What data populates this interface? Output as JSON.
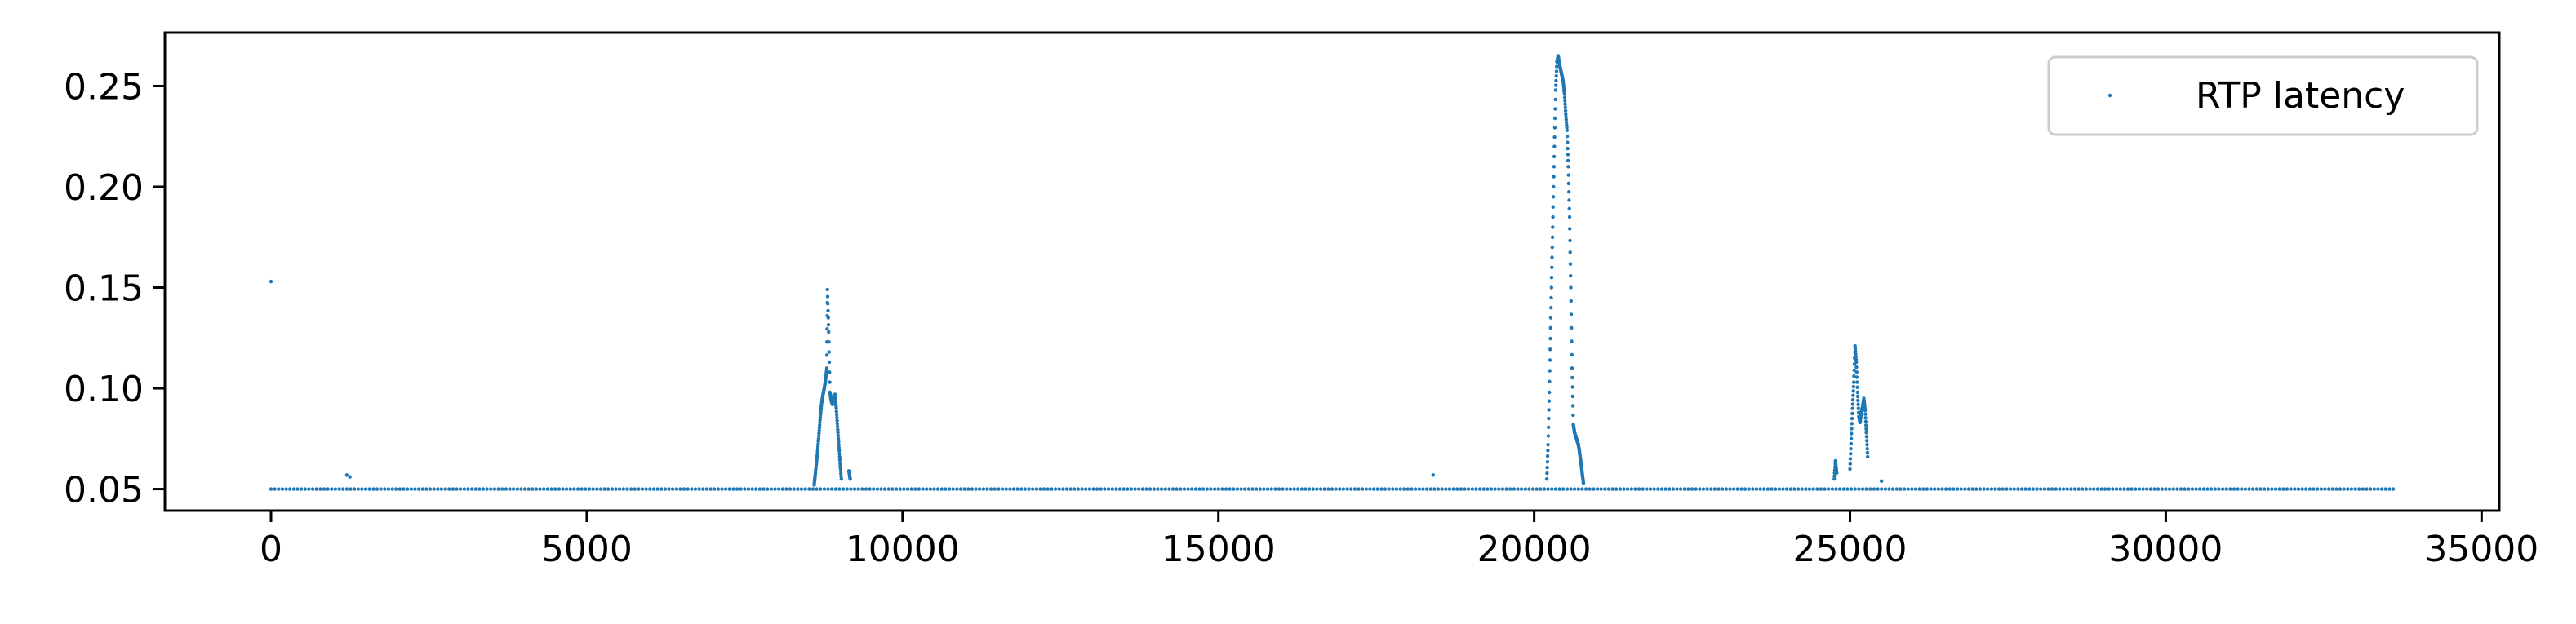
{
  "chart_data": {
    "type": "scatter",
    "title": "",
    "xlabel": "",
    "ylabel": "",
    "xlim": [
      -1680,
      35280
    ],
    "ylim": [
      0.0393,
      0.2765
    ],
    "xticks": [
      0,
      5000,
      10000,
      15000,
      20000,
      25000,
      30000,
      35000
    ],
    "xtick_labels": [
      "0",
      "5000",
      "10000",
      "15000",
      "20000",
      "25000",
      "30000",
      "35000"
    ],
    "yticks": [
      0.05,
      0.1,
      0.15,
      0.2,
      0.25
    ],
    "ytick_labels": [
      "0.05",
      "0.10",
      "0.15",
      "0.20",
      "0.25"
    ],
    "grid": false,
    "legend_position": "top-right",
    "series": [
      {
        "name": "RTP latency",
        "color": "#1f77b4",
        "baseline": {
          "x_start": 0,
          "x_end": 33600,
          "y": 0.05
        },
        "points": [
          [
            0,
            0.153
          ],
          [
            1200,
            0.057
          ],
          [
            1250,
            0.056
          ],
          [
            8600,
            0.052
          ],
          [
            8620,
            0.058
          ],
          [
            8640,
            0.064
          ],
          [
            8660,
            0.071
          ],
          [
            8680,
            0.079
          ],
          [
            8700,
            0.087
          ],
          [
            8720,
            0.093
          ],
          [
            8740,
            0.097
          ],
          [
            8760,
            0.1
          ],
          [
            8780,
            0.104
          ],
          [
            8800,
            0.11
          ],
          [
            8810,
            0.149
          ],
          [
            8830,
            0.128
          ],
          [
            8850,
            0.098
          ],
          [
            8870,
            0.094
          ],
          [
            8890,
            0.092
          ],
          [
            8910,
            0.096
          ],
          [
            8930,
            0.097
          ],
          [
            8950,
            0.09
          ],
          [
            8970,
            0.081
          ],
          [
            8990,
            0.072
          ],
          [
            9010,
            0.063
          ],
          [
            9030,
            0.055
          ],
          [
            9150,
            0.059
          ],
          [
            9170,
            0.055
          ],
          [
            18400,
            0.057
          ],
          [
            20200,
            0.055
          ],
          [
            20220,
            0.072
          ],
          [
            20240,
            0.098
          ],
          [
            20260,
            0.13
          ],
          [
            20280,
            0.16
          ],
          [
            20300,
            0.19
          ],
          [
            20320,
            0.22
          ],
          [
            20340,
            0.248
          ],
          [
            20360,
            0.262
          ],
          [
            20380,
            0.265
          ],
          [
            20400,
            0.261
          ],
          [
            20420,
            0.258
          ],
          [
            20440,
            0.255
          ],
          [
            20460,
            0.252
          ],
          [
            20480,
            0.246
          ],
          [
            20500,
            0.236
          ],
          [
            20520,
            0.228
          ],
          [
            20540,
            0.21
          ],
          [
            20560,
            0.185
          ],
          [
            20580,
            0.15
          ],
          [
            20600,
            0.11
          ],
          [
            20620,
            0.082
          ],
          [
            20640,
            0.078
          ],
          [
            20660,
            0.076
          ],
          [
            20680,
            0.074
          ],
          [
            20700,
            0.072
          ],
          [
            20720,
            0.068
          ],
          [
            20740,
            0.063
          ],
          [
            20760,
            0.058
          ],
          [
            20780,
            0.053
          ],
          [
            24750,
            0.055
          ],
          [
            24770,
            0.064
          ],
          [
            24790,
            0.058
          ],
          [
            25000,
            0.06
          ],
          [
            25020,
            0.075
          ],
          [
            25040,
            0.09
          ],
          [
            25060,
            0.103
          ],
          [
            25080,
            0.121
          ],
          [
            25100,
            0.113
          ],
          [
            25120,
            0.098
          ],
          [
            25140,
            0.086
          ],
          [
            25160,
            0.083
          ],
          [
            25180,
            0.088
          ],
          [
            25200,
            0.091
          ],
          [
            25220,
            0.095
          ],
          [
            25240,
            0.089
          ],
          [
            25260,
            0.078
          ],
          [
            25280,
            0.066
          ],
          [
            25500,
            0.054
          ]
        ]
      }
    ]
  }
}
